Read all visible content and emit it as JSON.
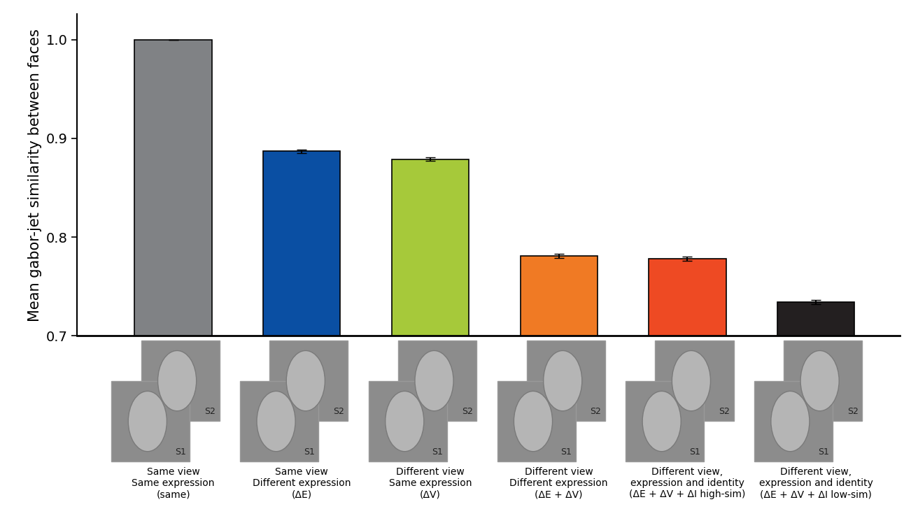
{
  "chart_data": {
    "type": "bar",
    "y_label": "Mean gabor-jet similarity between faces",
    "categories": [
      "Same view\nSame expression\n(same)",
      "Same view\nDifferent expression\n(ΔE)",
      "Different view\nSame expression\n(ΔV)",
      "Different view\nDifferent expression\n(ΔE + ΔV)",
      "Different view,\nexpression and identity\n(ΔE + ΔV + ΔI high-sim)",
      "Different view,\nexpression and identity\n(ΔE + ΔV + ΔI low-sim)"
    ],
    "values": [
      1.0,
      0.887,
      0.879,
      0.781,
      0.778,
      0.734
    ],
    "errors": [
      0.0,
      0.002,
      0.002,
      0.002,
      0.002,
      0.002
    ],
    "colors": [
      "#808285",
      "#0a4fa3",
      "#a6c93a",
      "#f07a24",
      "#ee4a23",
      "#231f20"
    ],
    "ylim": [
      0.7,
      1.026
    ],
    "yticks": [
      0.7,
      0.8,
      0.9,
      {
        "value": 1.0,
        "label": "1.0"
      }
    ],
    "grid": false,
    "stimulus_labels": [
      "S1",
      "S2"
    ]
  }
}
